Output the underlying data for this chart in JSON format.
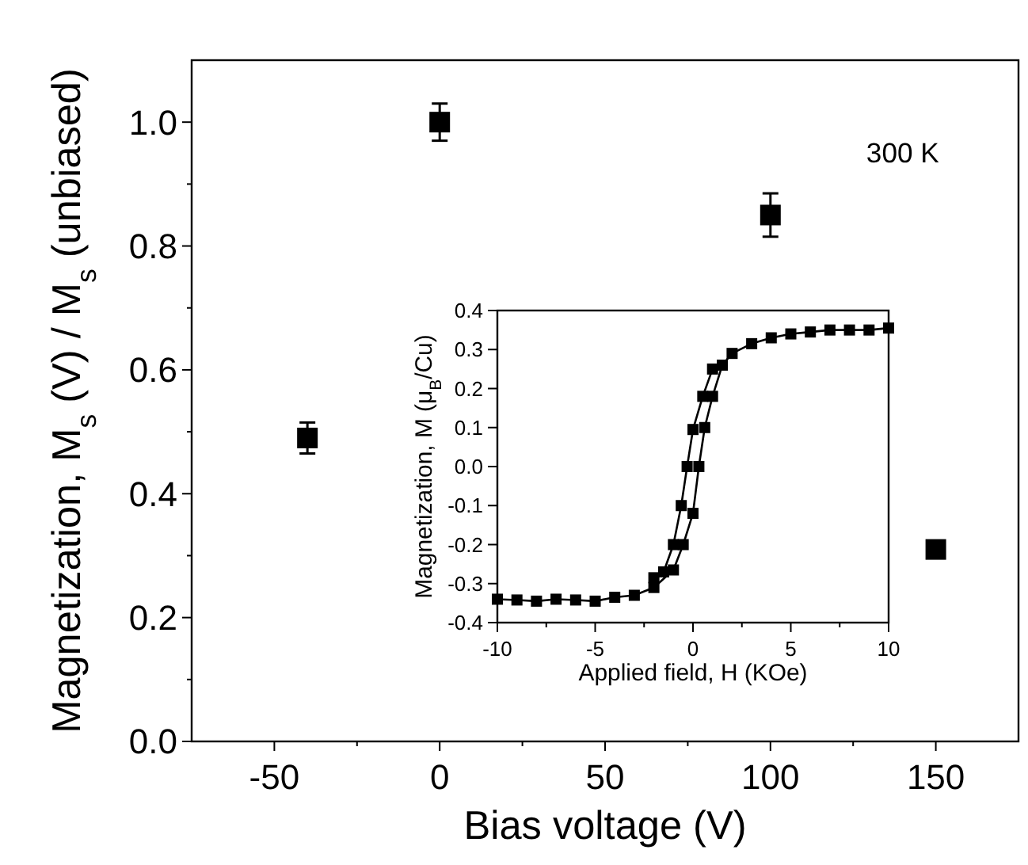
{
  "chart_data": [
    {
      "type": "scatter",
      "xlabel": "Bias voltage (V)",
      "ylabel": "Magnetization, M$_{s}$ (V) / M$_{s}$ (unbiased)",
      "x": [
        -40,
        0,
        100,
        150
      ],
      "values": [
        0.49,
        1.0,
        0.85,
        0.31
      ],
      "errors": [
        0.025,
        0.03,
        0.035,
        0.01
      ],
      "color": "#000000",
      "marker": "square",
      "xlim": [
        -75,
        175
      ],
      "ylim": [
        0,
        1.1
      ],
      "xticks": [
        -50,
        {
          "value": -25,
          "label": null
        },
        0,
        {
          "value": 25,
          "label": null
        },
        50,
        {
          "value": 75,
          "label": null
        },
        100,
        {
          "value": 125,
          "label": null
        },
        150
      ],
      "yticks": [
        {
          "value": 0,
          "label": "0.0"
        },
        {
          "value": 0.1,
          "label": null
        },
        0.2,
        {
          "value": 0.3,
          "label": null
        },
        0.4,
        {
          "value": 0.5,
          "label": null
        },
        0.6,
        {
          "value": 0.7,
          "label": null
        },
        0.8,
        {
          "value": 0.9,
          "label": null
        },
        {
          "value": 1,
          "label": "1.0"
        }
      ],
      "annotations": [
        "300 K"
      ]
    },
    {
      "type": "line",
      "xlabel": "Applied field, H (KOe)",
      "ylabel": "Magnetization, M (μ$_{B}$/Cu)",
      "marker": "square",
      "line_style": "solid",
      "xlim": [
        -10,
        10
      ],
      "ylim": [
        -0.4,
        0.4
      ],
      "xticks": [
        -10,
        {
          "value": -7.5,
          "label": null
        },
        -5,
        {
          "value": -2.5,
          "label": null
        },
        0,
        {
          "value": 2.5,
          "label": null
        },
        5,
        {
          "value": 7.5,
          "label": null
        },
        10
      ],
      "yticks": [
        -0.4,
        -0.3,
        -0.2,
        -0.1,
        {
          "value": 0,
          "label": "0.0"
        },
        0.1,
        0.2,
        0.3,
        0.4
      ],
      "series": [
        {
          "color": "#000000",
          "x": [
            -10,
            -9,
            -8,
            -7,
            -6,
            -5,
            -4,
            -3,
            -2,
            -1,
            -0.5,
            0,
            0.3,
            0.6,
            1,
            1.5,
            2,
            3,
            4,
            5,
            6,
            7,
            8,
            9,
            10
          ],
          "values": [
            -0.34,
            -0.342,
            -0.345,
            -0.34,
            -0.342,
            -0.345,
            -0.335,
            -0.33,
            -0.31,
            -0.265,
            -0.2,
            -0.12,
            0.0,
            0.1,
            0.18,
            0.26,
            0.29,
            0.315,
            0.33,
            0.34,
            0.345,
            0.35,
            0.35,
            0.35,
            0.355
          ]
        },
        {
          "color": "#000000",
          "x": [
            -2,
            -1.5,
            -1,
            -0.6,
            -0.3,
            0,
            0.5,
            1
          ],
          "values": [
            -0.285,
            -0.27,
            -0.2,
            -0.1,
            0.0,
            0.095,
            0.18,
            0.25
          ]
        }
      ]
    }
  ]
}
